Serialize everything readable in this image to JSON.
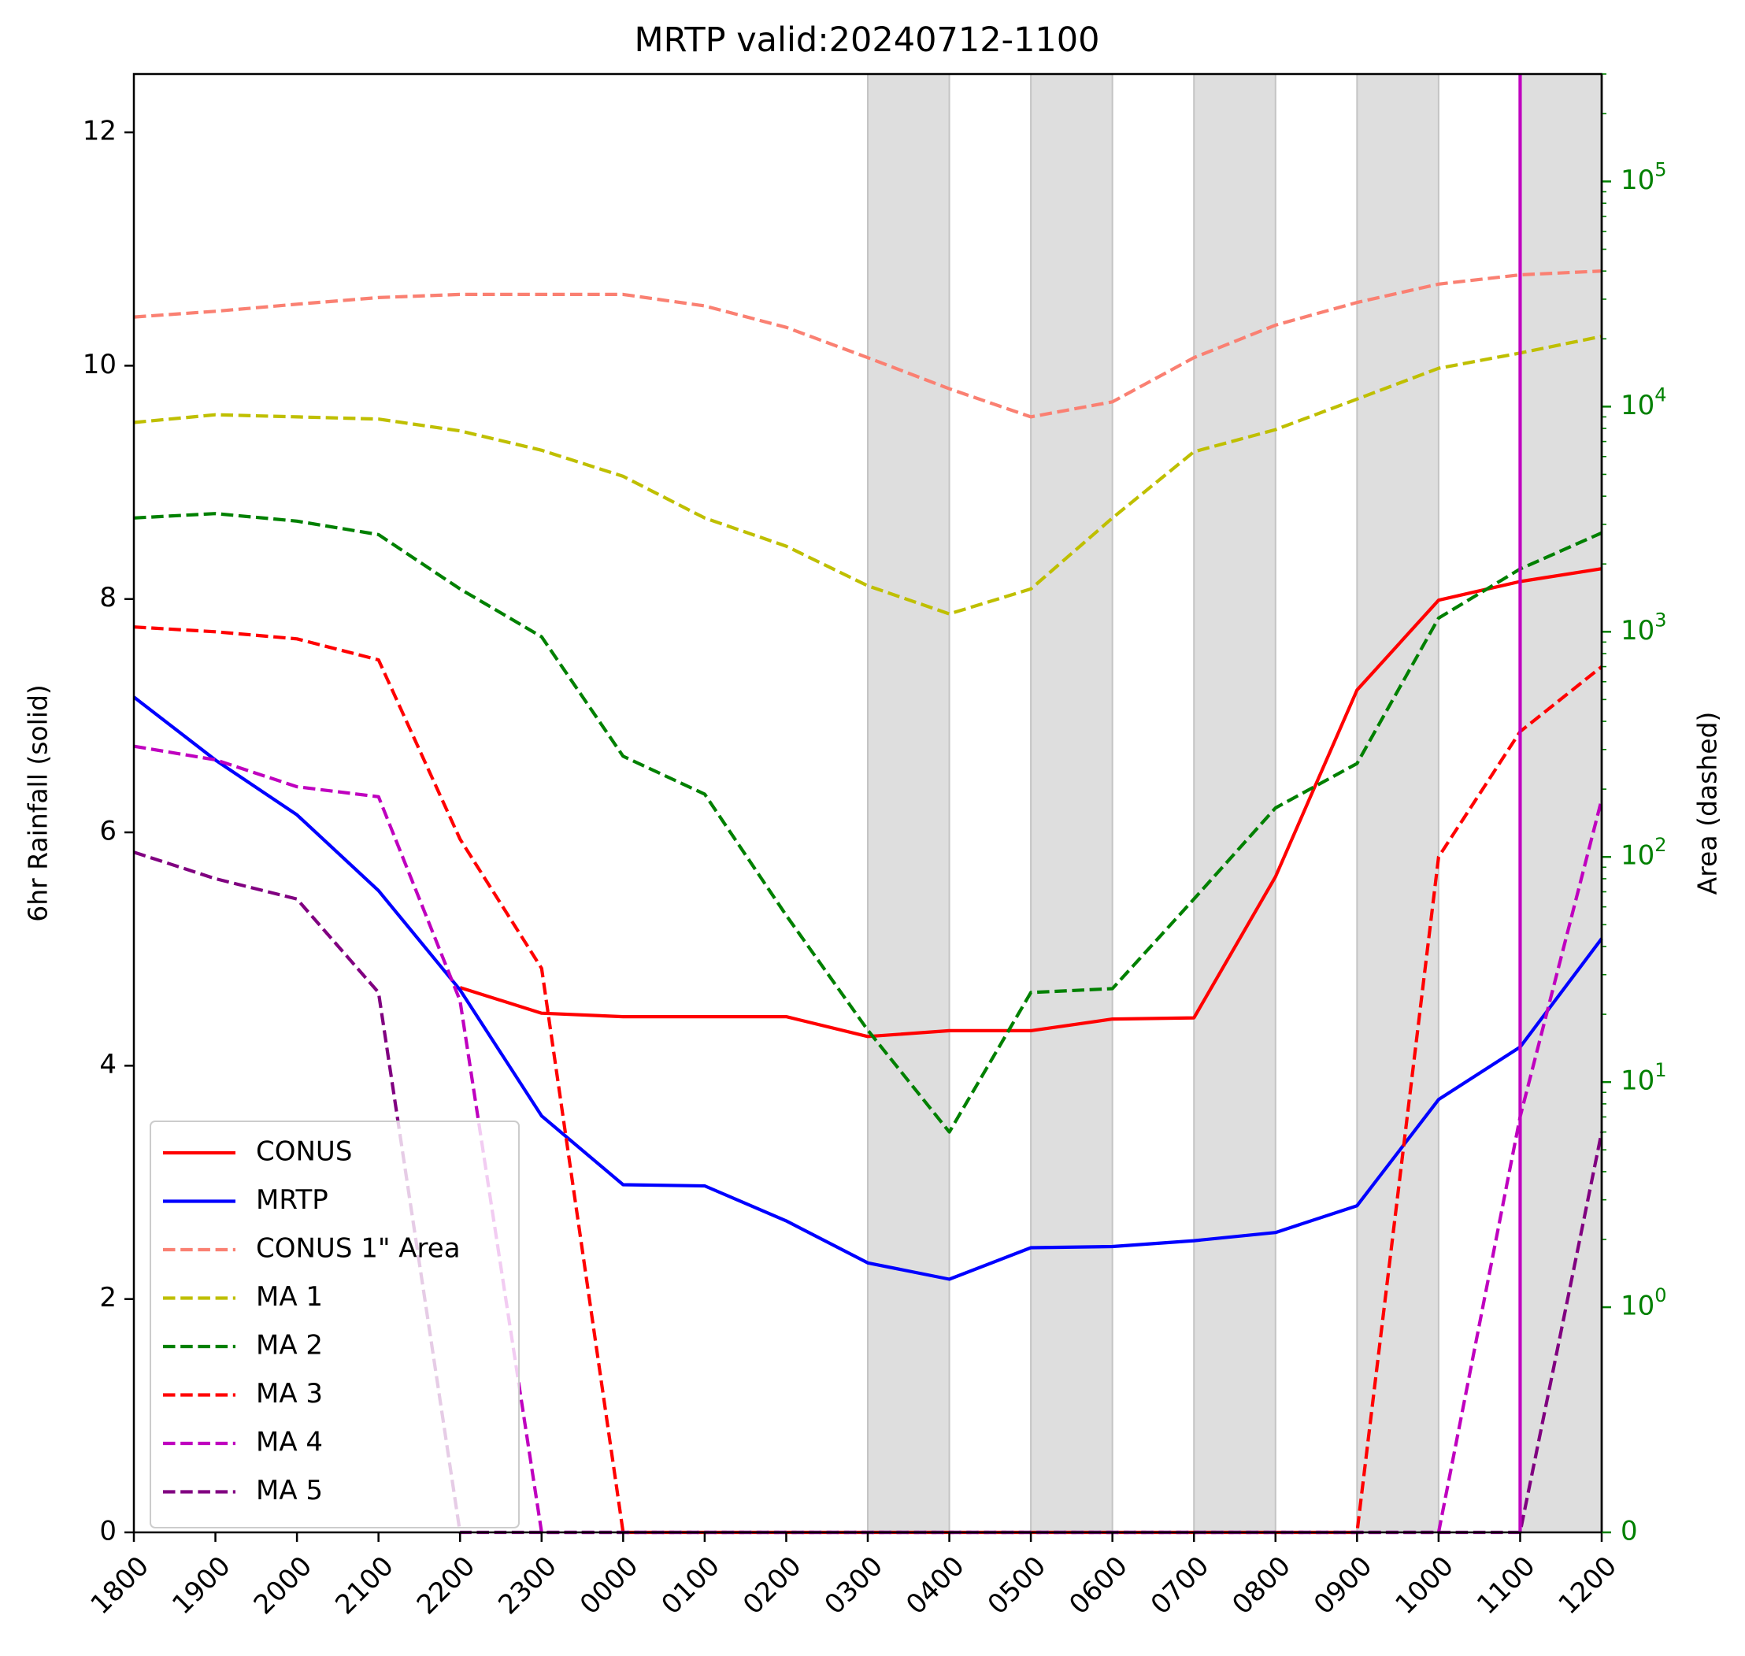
{
  "chart_data": {
    "type": "line",
    "title": "MRTP valid:20240712-1100",
    "ylabel_left": "6hr Rainfall (solid)",
    "ylabel_right": "Area (dashed)",
    "categories": [
      "1800",
      "1900",
      "2000",
      "2100",
      "2200",
      "2300",
      "0000",
      "0100",
      "0200",
      "0300",
      "0400",
      "0500",
      "0600",
      "0700",
      "0800",
      "0900",
      "1000",
      "1100",
      "1200"
    ],
    "ylim_left": [
      0,
      12.5
    ],
    "yticks_left": [
      "0",
      "2",
      "4",
      "6",
      "8",
      "10",
      "12"
    ],
    "right_axis": {
      "scale": "symlog",
      "linthresh": 1,
      "ylim": [
        0,
        300000
      ],
      "ticks": [
        {
          "value": 0,
          "base": "0",
          "exp": ""
        },
        {
          "value": 1,
          "base": "10",
          "exp": "0"
        },
        {
          "value": 10,
          "base": "10",
          "exp": "1"
        },
        {
          "value": 100,
          "base": "10",
          "exp": "2"
        },
        {
          "value": 1000,
          "base": "10",
          "exp": "3"
        },
        {
          "value": 10000,
          "base": "10",
          "exp": "4"
        },
        {
          "value": 100000,
          "base": "10",
          "exp": "5"
        }
      ],
      "color": "#008000"
    },
    "shaded_hours": [
      "0300",
      "0500",
      "0700",
      "0900",
      "1100"
    ],
    "valid_marker": {
      "category": "1100",
      "color": "#bf00bf"
    },
    "series": [
      {
        "name": "CONUS",
        "axis": "left",
        "style": "solid",
        "color": "#ff0000",
        "values": [
          null,
          null,
          null,
          null,
          4.67,
          4.45,
          4.42,
          4.42,
          4.42,
          4.25,
          4.3,
          4.3,
          4.4,
          4.41,
          5.62,
          7.22,
          7.99,
          8.15,
          8.26
        ]
      },
      {
        "name": "MRTP",
        "axis": "left",
        "style": "solid",
        "color": "#0000ff",
        "values": [
          7.16,
          6.62,
          6.15,
          5.5,
          4.65,
          3.57,
          2.98,
          2.97,
          2.67,
          2.31,
          2.17,
          2.44,
          2.45,
          2.5,
          2.57,
          2.8,
          3.71,
          4.16,
          5.09
        ]
      },
      {
        "name": "CONUS 1\" Area",
        "axis": "right",
        "style": "dashed",
        "color": "#fa8072",
        "values": [
          25000,
          26500,
          28500,
          30500,
          31500,
          31500,
          31500,
          28000,
          22500,
          16500,
          12000,
          9000,
          10500,
          16500,
          23000,
          29000,
          35000,
          38500,
          40000
        ]
      },
      {
        "name": "MA 1",
        "axis": "right",
        "style": "dashed",
        "color": "#bfbf00",
        "values": [
          8500,
          9200,
          9000,
          8800,
          7800,
          6400,
          4900,
          3200,
          2400,
          1600,
          1200,
          1550,
          3200,
          6300,
          7900,
          10800,
          14800,
          17300,
          20500
        ]
      },
      {
        "name": "MA 2",
        "axis": "right",
        "style": "dashed",
        "color": "#008000",
        "values": [
          3200,
          3350,
          3100,
          2700,
          1550,
          950,
          280,
          190,
          55,
          17,
          6,
          25,
          26,
          65,
          165,
          260,
          1150,
          1900,
          2750
        ]
      },
      {
        "name": "MA 3",
        "axis": "right",
        "style": "dashed",
        "color": "#ff0000",
        "values": [
          1050,
          1000,
          930,
          750,
          120,
          32,
          0,
          0,
          0,
          0,
          0,
          0,
          0,
          0,
          0,
          0,
          100,
          360,
          700
        ]
      },
      {
        "name": "MA 4",
        "axis": "right",
        "style": "dashed",
        "color": "#bf00bf",
        "values": [
          310,
          270,
          205,
          185,
          23,
          0,
          0,
          0,
          0,
          0,
          0,
          0,
          0,
          0,
          0,
          0,
          0,
          7,
          180
        ]
      },
      {
        "name": "MA 5",
        "axis": "right",
        "style": "dashed",
        "color": "#800080",
        "values": [
          105,
          80,
          65,
          25,
          0,
          0,
          0,
          0,
          0,
          0,
          0,
          0,
          0,
          0,
          0,
          0,
          0,
          0,
          6
        ]
      }
    ],
    "legend": {
      "location": "lower left"
    },
    "grid": false
  }
}
